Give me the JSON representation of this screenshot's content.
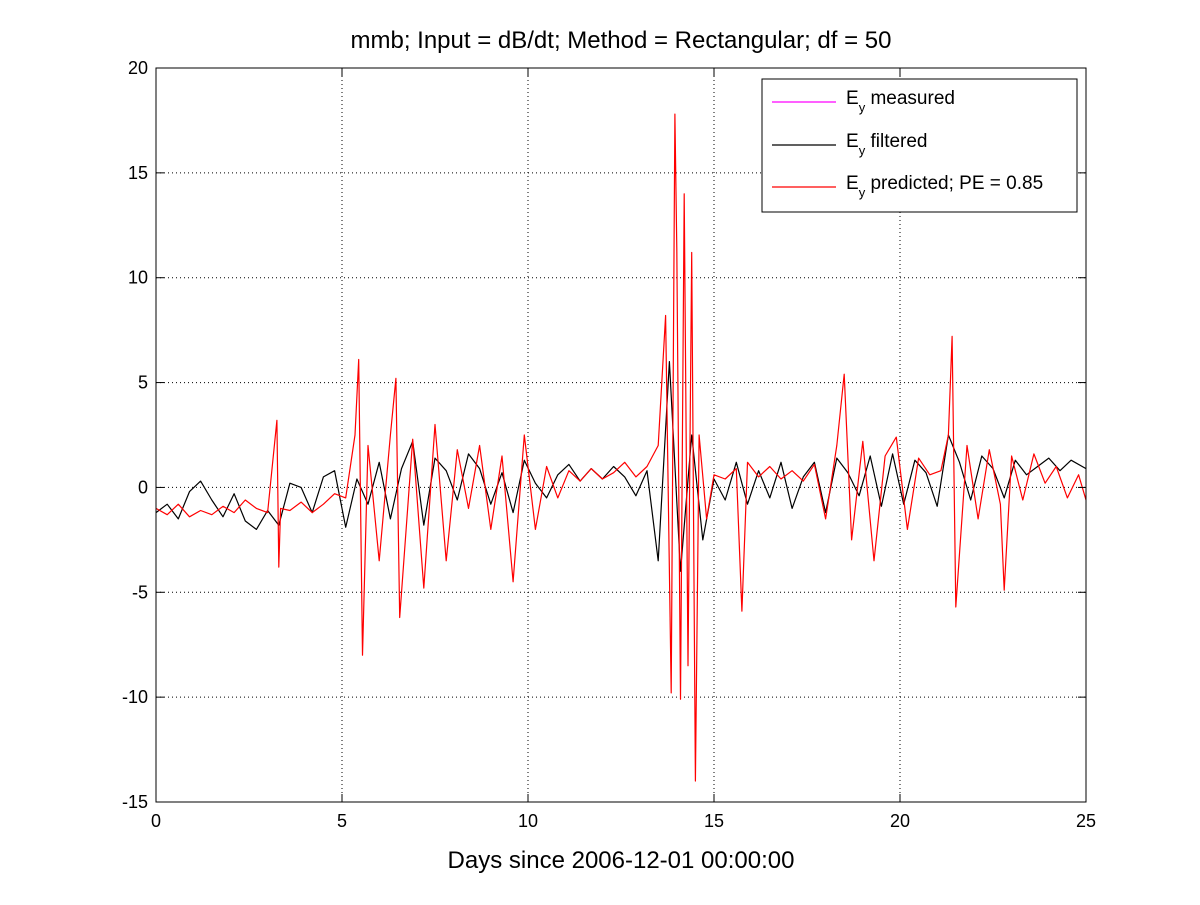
{
  "chart_data": {
    "type": "line",
    "title": "mmb; Input = dB/dt; Method = Rectangular; df = 50",
    "xlabel": "Days since 2006-12-01 00:00:00",
    "ylabel": "",
    "xlim": [
      0,
      25
    ],
    "ylim": [
      -15,
      20
    ],
    "xticks": [
      0,
      5,
      10,
      15,
      20,
      25
    ],
    "yticks": [
      -15,
      -10,
      -5,
      0,
      5,
      10,
      15,
      20
    ],
    "grid": true,
    "legend_position": "top-right",
    "series": [
      {
        "name": "E_y measured",
        "legend_main": "E",
        "legend_sub": "y",
        "legend_rest": " measured",
        "color": "#ff00ff",
        "x": [],
        "y": []
      },
      {
        "name": "E_y filtered",
        "legend_main": "E",
        "legend_sub": "y",
        "legend_rest": " filtered",
        "color": "#000000",
        "x": [
          0,
          0.3,
          0.6,
          0.9,
          1.2,
          1.5,
          1.8,
          2.1,
          2.4,
          2.7,
          3.0,
          3.3,
          3.6,
          3.9,
          4.2,
          4.5,
          4.8,
          5.1,
          5.4,
          5.7,
          6.0,
          6.3,
          6.6,
          6.9,
          7.2,
          7.5,
          7.8,
          8.1,
          8.4,
          8.7,
          9.0,
          9.3,
          9.6,
          9.9,
          10.2,
          10.5,
          10.8,
          11.1,
          11.4,
          11.7,
          12.0,
          12.3,
          12.6,
          12.9,
          13.2,
          13.5,
          13.8,
          14.1,
          14.4,
          14.7,
          15.0,
          15.3,
          15.6,
          15.9,
          16.2,
          16.5,
          16.8,
          17.1,
          17.4,
          17.7,
          18.0,
          18.3,
          18.6,
          18.9,
          19.2,
          19.5,
          19.8,
          20.1,
          20.4,
          20.7,
          21.0,
          21.3,
          21.6,
          21.9,
          22.2,
          22.5,
          22.8,
          23.1,
          23.4,
          23.7,
          24.0,
          24.3,
          24.6,
          25.0
        ],
        "y": [
          -1.2,
          -0.8,
          -1.5,
          -0.2,
          0.3,
          -0.6,
          -1.4,
          -0.3,
          -1.6,
          -2.0,
          -1.1,
          -1.8,
          0.2,
          0.0,
          -1.2,
          0.5,
          0.8,
          -1.9,
          0.4,
          -0.8,
          1.2,
          -1.5,
          0.9,
          2.2,
          -1.8,
          1.4,
          0.8,
          -0.6,
          1.6,
          0.9,
          -0.8,
          0.7,
          -1.2,
          1.3,
          0.2,
          -0.5,
          0.6,
          1.1,
          0.3,
          0.9,
          0.4,
          1.0,
          0.5,
          -0.4,
          0.8,
          -3.5,
          6.0,
          -4.0,
          2.5,
          -2.5,
          0.4,
          -0.6,
          1.2,
          -0.8,
          0.8,
          -0.5,
          1.2,
          -1.0,
          0.5,
          1.2,
          -1.2,
          1.4,
          0.7,
          -0.4,
          1.5,
          -0.9,
          1.6,
          -0.8,
          1.3,
          0.7,
          -0.9,
          2.5,
          1.2,
          -0.6,
          1.5,
          0.9,
          -0.5,
          1.3,
          0.6,
          1.0,
          1.4,
          0.8,
          1.3,
          0.9
        ]
      },
      {
        "name": "E_y predicted; PE = 0.85",
        "legend_main": "E",
        "legend_sub": "y",
        "legend_rest": " predicted; PE = 0.85",
        "color": "#ff0000",
        "x": [
          0,
          0.3,
          0.6,
          0.9,
          1.2,
          1.5,
          1.8,
          2.1,
          2.4,
          2.7,
          3.0,
          3.25,
          3.3,
          3.35,
          3.6,
          3.9,
          4.2,
          4.5,
          4.8,
          5.1,
          5.35,
          5.45,
          5.55,
          5.7,
          6.0,
          6.3,
          6.45,
          6.55,
          6.9,
          7.2,
          7.5,
          7.8,
          8.1,
          8.4,
          8.7,
          9.0,
          9.3,
          9.6,
          9.9,
          10.2,
          10.5,
          10.8,
          11.1,
          11.4,
          11.7,
          12.0,
          12.3,
          12.6,
          12.9,
          13.2,
          13.5,
          13.7,
          13.85,
          13.95,
          14.0,
          14.1,
          14.2,
          14.3,
          14.4,
          14.5,
          14.6,
          14.8,
          15.0,
          15.3,
          15.6,
          15.75,
          15.9,
          16.2,
          16.5,
          16.8,
          17.1,
          17.4,
          17.7,
          18.0,
          18.3,
          18.5,
          18.7,
          19.0,
          19.3,
          19.6,
          19.9,
          20.2,
          20.5,
          20.8,
          21.1,
          21.3,
          21.4,
          21.5,
          21.8,
          22.1,
          22.4,
          22.7,
          22.8,
          23.0,
          23.3,
          23.6,
          23.9,
          24.2,
          24.5,
          24.8,
          25.0
        ],
        "y": [
          -1.0,
          -1.3,
          -0.8,
          -1.4,
          -1.1,
          -1.3,
          -0.9,
          -1.2,
          -0.6,
          -1.0,
          -1.2,
          3.2,
          -3.8,
          -1.0,
          -1.1,
          -0.7,
          -1.2,
          -0.8,
          -0.3,
          -0.5,
          2.5,
          6.1,
          -8.0,
          2.0,
          -3.5,
          2.5,
          5.2,
          -6.2,
          2.3,
          -4.8,
          3.0,
          -3.5,
          1.8,
          -1.0,
          2.0,
          -2.0,
          1.5,
          -4.5,
          2.5,
          -2.0,
          1.0,
          -0.5,
          0.8,
          0.3,
          0.9,
          0.4,
          0.7,
          1.2,
          0.5,
          1.0,
          2.0,
          8.2,
          -9.8,
          17.8,
          11.4,
          -10.1,
          14.0,
          -8.5,
          11.2,
          -14.0,
          2.5,
          -1.5,
          0.6,
          0.4,
          0.9,
          -5.9,
          1.2,
          0.5,
          1.0,
          0.4,
          0.8,
          0.3,
          1.1,
          -1.5,
          2.0,
          5.4,
          -2.5,
          2.2,
          -3.5,
          1.5,
          2.4,
          -2.0,
          1.4,
          0.6,
          0.8,
          2.5,
          7.2,
          -5.7,
          2.0,
          -1.5,
          1.8,
          -0.8,
          -4.9,
          1.5,
          -0.6,
          1.6,
          0.2,
          1.0,
          -0.5,
          0.6,
          -0.6
        ]
      }
    ]
  }
}
